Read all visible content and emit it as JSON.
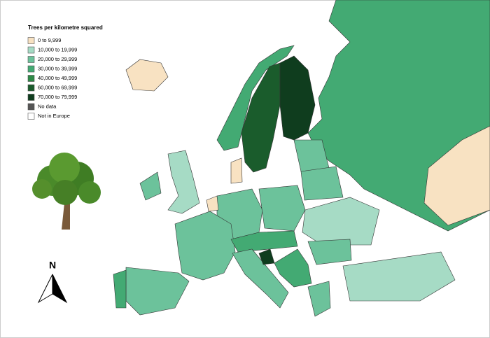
{
  "legend": {
    "title": "Trees per kilometre squared",
    "items": [
      {
        "label": "0 to 9,999",
        "color": "#f8e2c2"
      },
      {
        "label": "10,000 to 19,999",
        "color": "#a6dbc5"
      },
      {
        "label": "20,000 to 29,999",
        "color": "#6cc29b"
      },
      {
        "label": "30,000 to 39,999",
        "color": "#43aa73"
      },
      {
        "label": "40,000 to 49,999",
        "color": "#2d8a47"
      },
      {
        "label": "60,000 to 69,999",
        "color": "#1a5c2c"
      },
      {
        "label": "70,000 to 79,999",
        "color": "#0f3d1e"
      },
      {
        "label": "No data",
        "color": "#555555"
      },
      {
        "label": "Not in Europe",
        "color": "#ffffff"
      }
    ]
  },
  "compass": {
    "label": "N"
  }
}
